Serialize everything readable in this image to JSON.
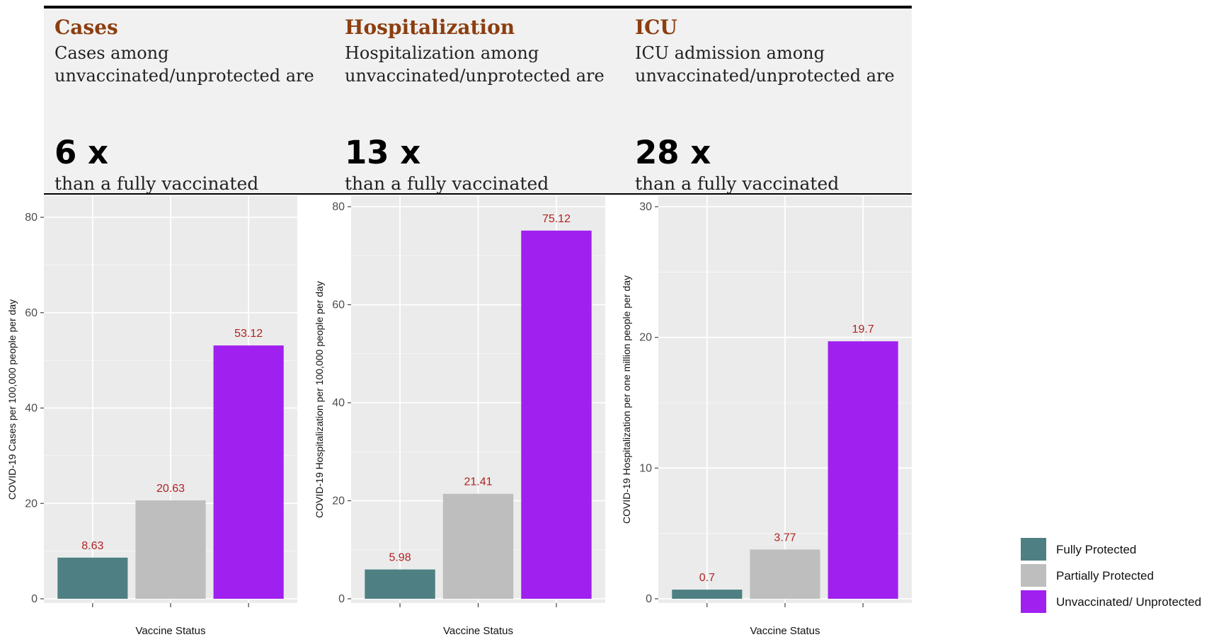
{
  "headers": [
    {
      "title": "Cases",
      "desc": "Cases among unvaccinated/unprotected are",
      "mult": "6 x",
      "compare": "than a fully vaccinated"
    },
    {
      "title": "Hospitalization",
      "desc": "Hospitalization among unvaccinated/unprotected are",
      "mult": "13 x",
      "compare": "than a fully vaccinated"
    },
    {
      "title": "ICU",
      "desc": "ICU admission among unvaccinated/unprotected are",
      "mult": "28 x",
      "compare": "than a fully vaccinated"
    }
  ],
  "colors": {
    "fully": "#4e8083",
    "partial": "#bebebe",
    "unvax": "#a020f0",
    "label_text": "#b22222",
    "panel_bg": "#ebebeb",
    "grid": "#ffffff",
    "header_title": "#8b3e0f"
  },
  "legend": [
    {
      "label": "Fully Protected",
      "color": "#4e8083"
    },
    {
      "label": "Partially Protected",
      "color": "#bebebe"
    },
    {
      "label": "Unvaccinated/ Unprotected",
      "color": "#a020f0"
    }
  ],
  "chart_data": [
    {
      "type": "bar",
      "categories": [
        "Fully Protected",
        "Partially Protected",
        "Unvaccinated/ Unprotected"
      ],
      "values": [
        8.63,
        20.63,
        53.12
      ],
      "data_labels": [
        "8.63",
        "20.63",
        "53.12"
      ],
      "xlabel": "Vaccine Status",
      "ylabel": "COVID-19 Cases per 100,000 people per day",
      "ylim": [
        0,
        82
      ],
      "yticks": [
        0,
        20,
        40,
        60,
        80
      ],
      "grid": true
    },
    {
      "type": "bar",
      "categories": [
        "Fully Protected",
        "Partially Protected",
        "Unvaccinated/ Unprotected"
      ],
      "values": [
        5.98,
        21.41,
        75.12
      ],
      "data_labels": [
        "5.98",
        "21.41",
        "75.12"
      ],
      "xlabel": "Vaccine Status",
      "ylabel": "COVID-19 Hospitalization per 100,000 people per day",
      "ylim": [
        0,
        80
      ],
      "yticks": [
        0,
        20,
        40,
        60,
        80
      ],
      "grid": true
    },
    {
      "type": "bar",
      "categories": [
        "Fully Protected",
        "Partially Protected",
        "Unvaccinated/ Unprotected"
      ],
      "values": [
        0.7,
        3.77,
        19.7
      ],
      "data_labels": [
        "0.7",
        "3.77",
        "19.7"
      ],
      "xlabel": "Vaccine Status",
      "ylabel": "COVID-19 Hospitalization per one million people per day",
      "ylim": [
        0,
        30
      ],
      "yticks": [
        0,
        10,
        20,
        30
      ],
      "grid": true
    }
  ]
}
